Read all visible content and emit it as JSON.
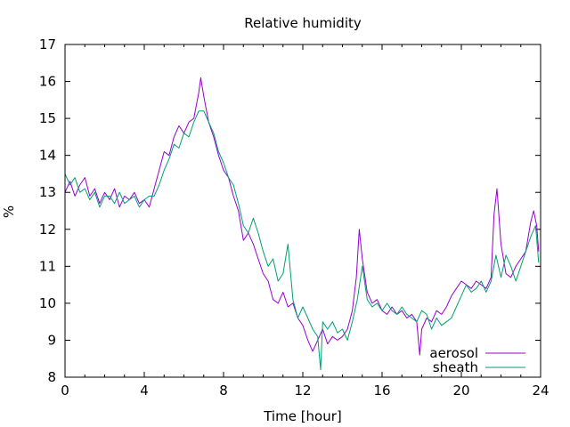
{
  "chart_data": {
    "type": "line",
    "title": "Relative humidity",
    "xlabel": "Time [hour]",
    "ylabel": "%",
    "xlim": [
      0,
      24
    ],
    "ylim": [
      8,
      17
    ],
    "xticks": [
      0,
      4,
      8,
      12,
      16,
      20,
      24
    ],
    "yticks": [
      8,
      9,
      10,
      11,
      12,
      13,
      14,
      15,
      16,
      17
    ],
    "grid": false,
    "legend_position": "bottom-right",
    "series": [
      {
        "name": "aerosol",
        "color": "#9400d3",
        "x": [
          0,
          0.25,
          0.5,
          0.75,
          1,
          1.25,
          1.5,
          1.75,
          2,
          2.25,
          2.5,
          2.75,
          3,
          3.25,
          3.5,
          3.75,
          4,
          4.25,
          4.5,
          4.75,
          5,
          5.25,
          5.5,
          5.75,
          6,
          6.25,
          6.5,
          6.75,
          6.85,
          7,
          7.25,
          7.5,
          7.75,
          8,
          8.25,
          8.5,
          8.75,
          9,
          9.25,
          9.5,
          9.75,
          10,
          10.25,
          10.5,
          10.75,
          11,
          11.25,
          11.5,
          11.75,
          12,
          12.25,
          12.5,
          12.75,
          13,
          13.25,
          13.5,
          13.75,
          14,
          14.25,
          14.5,
          14.7,
          14.85,
          15,
          15.25,
          15.5,
          15.75,
          16,
          16.25,
          16.5,
          16.75,
          17,
          17.25,
          17.5,
          17.75,
          17.9,
          18,
          18.25,
          18.5,
          18.75,
          19,
          19.25,
          19.5,
          19.75,
          20,
          20.25,
          20.5,
          20.75,
          21,
          21.25,
          21.5,
          21.65,
          21.8,
          22,
          22.25,
          22.5,
          22.75,
          23,
          23.25,
          23.5,
          23.65,
          23.8,
          23.9
        ],
        "y": [
          13.0,
          13.3,
          12.9,
          13.2,
          13.4,
          12.9,
          13.1,
          12.7,
          13.0,
          12.8,
          13.1,
          12.6,
          12.9,
          12.8,
          13.0,
          12.7,
          12.8,
          12.6,
          13.1,
          13.6,
          14.1,
          14.0,
          14.5,
          14.8,
          14.6,
          14.9,
          15.0,
          15.7,
          16.1,
          15.6,
          14.9,
          14.5,
          14.0,
          13.6,
          13.4,
          12.9,
          12.5,
          11.7,
          11.9,
          11.6,
          11.2,
          10.8,
          10.6,
          10.1,
          10.0,
          10.3,
          9.9,
          10.0,
          9.6,
          9.4,
          9.0,
          8.7,
          9.0,
          9.3,
          8.9,
          9.1,
          9.0,
          9.1,
          9.3,
          9.8,
          10.7,
          12.0,
          11.2,
          10.3,
          10.0,
          10.1,
          9.8,
          9.7,
          9.9,
          9.7,
          9.8,
          9.6,
          9.7,
          9.5,
          8.6,
          9.3,
          9.6,
          9.5,
          9.8,
          9.7,
          9.9,
          10.2,
          10.4,
          10.6,
          10.5,
          10.4,
          10.6,
          10.5,
          10.4,
          10.7,
          12.4,
          13.1,
          11.6,
          10.8,
          10.7,
          11.0,
          11.2,
          11.4,
          12.2,
          12.5,
          12.1,
          11.4
        ]
      },
      {
        "name": "sheath",
        "color": "#009e73",
        "x": [
          0,
          0.25,
          0.5,
          0.75,
          1,
          1.25,
          1.5,
          1.75,
          2,
          2.25,
          2.5,
          2.75,
          3,
          3.25,
          3.5,
          3.75,
          4,
          4.25,
          4.5,
          4.75,
          5,
          5.25,
          5.5,
          5.75,
          6,
          6.25,
          6.5,
          6.75,
          7,
          7.25,
          7.5,
          7.75,
          8,
          8.25,
          8.5,
          8.75,
          9,
          9.25,
          9.5,
          9.75,
          10,
          10.25,
          10.5,
          10.75,
          11,
          11.25,
          11.5,
          11.75,
          12,
          12.25,
          12.5,
          12.75,
          12.9,
          13,
          13.25,
          13.5,
          13.75,
          14,
          14.25,
          14.5,
          14.75,
          15,
          15.25,
          15.5,
          15.75,
          16,
          16.25,
          16.5,
          16.75,
          17,
          17.25,
          17.5,
          17.75,
          18,
          18.25,
          18.5,
          18.75,
          19,
          19.25,
          19.5,
          19.75,
          20,
          20.25,
          20.5,
          20.75,
          21,
          21.25,
          21.5,
          21.75,
          22,
          22.25,
          22.5,
          22.75,
          23,
          23.25,
          23.5,
          23.75,
          23.9
        ],
        "y": [
          13.5,
          13.2,
          13.4,
          13.0,
          13.1,
          12.8,
          13.0,
          12.6,
          12.9,
          12.9,
          12.7,
          13.0,
          12.7,
          12.8,
          12.9,
          12.6,
          12.8,
          12.9,
          12.9,
          13.2,
          13.6,
          13.9,
          14.3,
          14.2,
          14.6,
          14.5,
          14.9,
          15.2,
          15.2,
          14.9,
          14.6,
          14.1,
          13.8,
          13.4,
          13.2,
          12.7,
          12.1,
          11.9,
          12.3,
          11.9,
          11.4,
          11.0,
          11.2,
          10.6,
          10.8,
          11.6,
          10.1,
          9.6,
          9.9,
          9.6,
          9.3,
          9.1,
          8.2,
          9.5,
          9.3,
          9.5,
          9.2,
          9.3,
          9.0,
          9.5,
          10.1,
          11.0,
          10.1,
          9.9,
          10.0,
          9.8,
          10.0,
          9.8,
          9.7,
          9.9,
          9.7,
          9.6,
          9.5,
          9.8,
          9.7,
          9.3,
          9.6,
          9.4,
          9.5,
          9.6,
          9.9,
          10.2,
          10.5,
          10.3,
          10.4,
          10.6,
          10.3,
          10.6,
          11.3,
          10.7,
          11.3,
          11.0,
          10.6,
          11.0,
          11.4,
          11.8,
          12.1,
          11.1
        ]
      }
    ]
  }
}
